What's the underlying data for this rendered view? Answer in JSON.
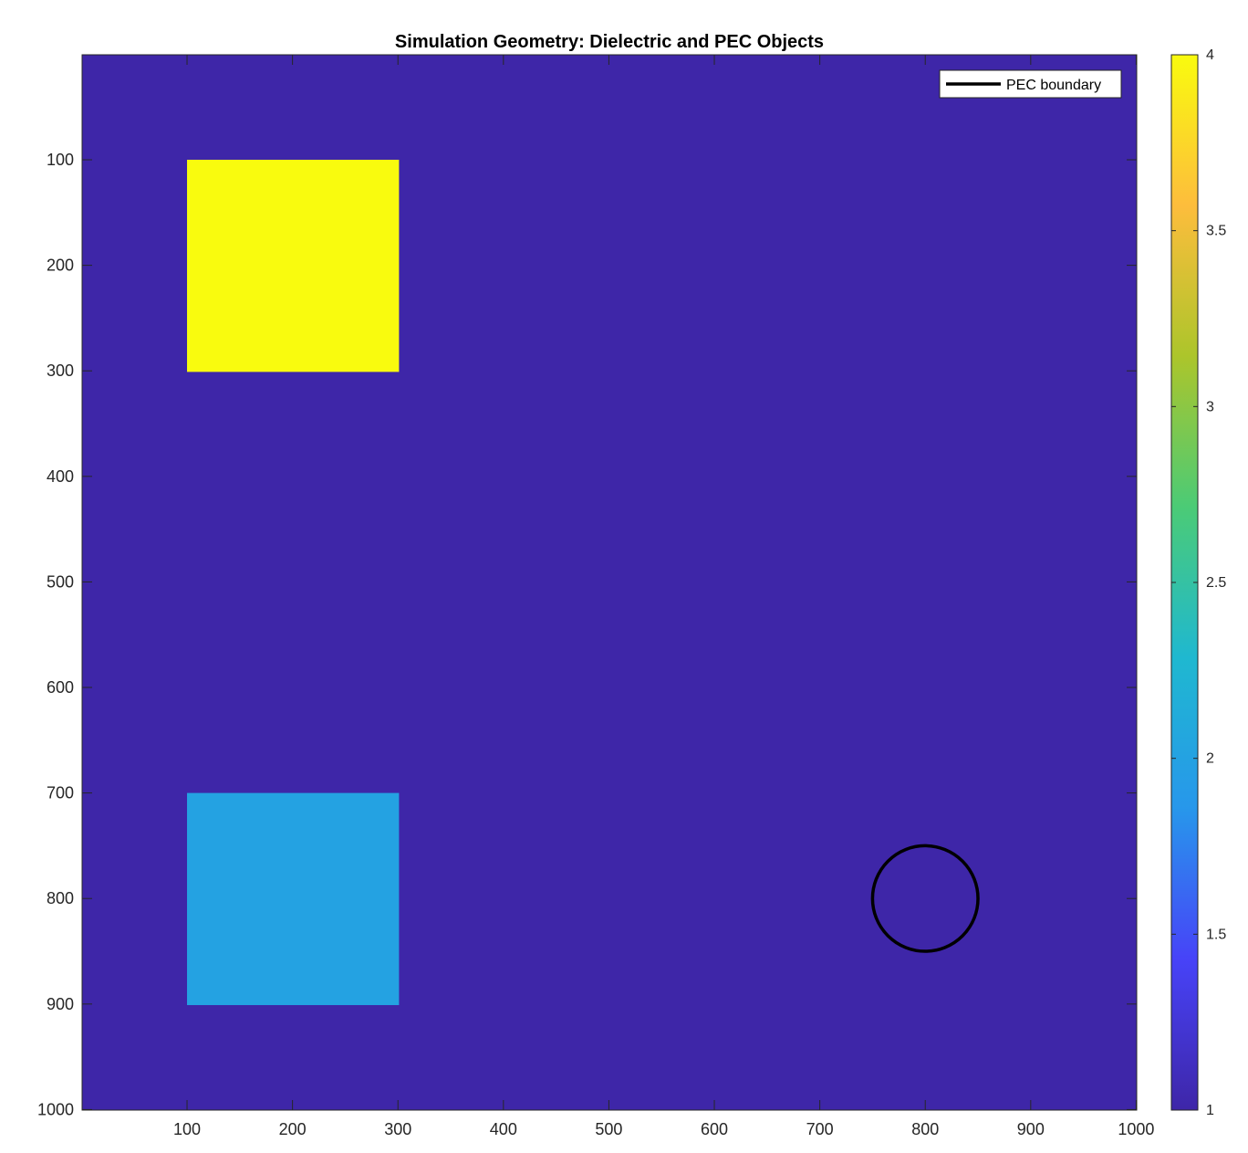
{
  "chart_data": {
    "type": "heatmap",
    "title": "Simulation Geometry: Dielectric and PEC Objects",
    "xlabel": "",
    "ylabel": "",
    "xlim": [
      0.5,
      1000.5
    ],
    "ylim": [
      0.5,
      1000.5
    ],
    "y_direction": "reverse",
    "xticks": [
      100,
      200,
      300,
      400,
      500,
      600,
      700,
      800,
      900,
      1000
    ],
    "yticks": [
      100,
      200,
      300,
      400,
      500,
      600,
      700,
      800,
      900,
      1000
    ],
    "background_value": 1,
    "regions": [
      {
        "shape": "rectangle",
        "x": [
          100,
          300
        ],
        "y": [
          100,
          300
        ],
        "value": 4
      },
      {
        "shape": "rectangle",
        "x": [
          100,
          300
        ],
        "y": [
          700,
          900
        ],
        "value": 2
      }
    ],
    "overlay": {
      "shape": "circle",
      "center": [
        800,
        800
      ],
      "radius": 50,
      "color": "#000000",
      "legend": "PEC boundary"
    },
    "legend_location": "top-right",
    "colorbar": {
      "limits": [
        1,
        4
      ],
      "ticks": [
        1,
        1.5,
        2,
        2.5,
        3,
        3.5,
        4
      ],
      "colormap": "parula",
      "colors": [
        "#3E26A8",
        "#4743F8",
        "#2797EB",
        "#1FB8D0",
        "#4BCB76",
        "#ACC52B",
        "#FDBD3C",
        "#F9FB0E"
      ]
    }
  }
}
